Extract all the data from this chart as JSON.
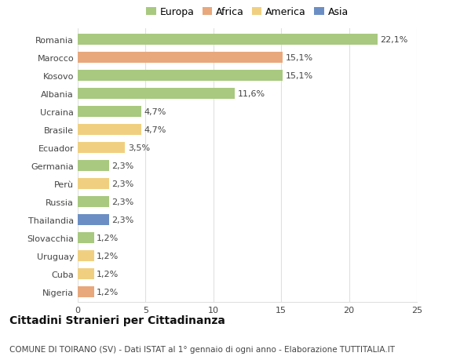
{
  "countries": [
    "Romania",
    "Marocco",
    "Kosovo",
    "Albania",
    "Ucraina",
    "Brasile",
    "Ecuador",
    "Germania",
    "Perù",
    "Russia",
    "Thailandia",
    "Slovacchia",
    "Uruguay",
    "Cuba",
    "Nigeria"
  ],
  "values": [
    22.1,
    15.1,
    15.1,
    11.6,
    4.7,
    4.7,
    3.5,
    2.3,
    2.3,
    2.3,
    2.3,
    1.2,
    1.2,
    1.2,
    1.2
  ],
  "labels": [
    "22,1%",
    "15,1%",
    "15,1%",
    "11,6%",
    "4,7%",
    "4,7%",
    "3,5%",
    "2,3%",
    "2,3%",
    "2,3%",
    "2,3%",
    "1,2%",
    "1,2%",
    "1,2%",
    "1,2%"
  ],
  "continents": [
    "Europa",
    "Africa",
    "Europa",
    "Europa",
    "Europa",
    "America",
    "America",
    "Europa",
    "America",
    "Europa",
    "Asia",
    "Europa",
    "America",
    "America",
    "Africa"
  ],
  "colors": {
    "Europa": "#a8c97f",
    "Africa": "#e8a87c",
    "America": "#f0d080",
    "Asia": "#6b8fc4"
  },
  "legend_order": [
    "Europa",
    "Africa",
    "America",
    "Asia"
  ],
  "title": "Cittadini Stranieri per Cittadinanza",
  "subtitle": "COMUNE DI TOIRANO (SV) - Dati ISTAT al 1° gennaio di ogni anno - Elaborazione TUTTITALIA.IT",
  "xlim": [
    0,
    25
  ],
  "xticks": [
    0,
    5,
    10,
    15,
    20,
    25
  ],
  "background_color": "#ffffff",
  "grid_color": "#e0e0e0",
  "bar_height": 0.6,
  "title_fontsize": 10,
  "subtitle_fontsize": 7.5,
  "tick_fontsize": 8,
  "label_fontsize": 8,
  "legend_fontsize": 9
}
